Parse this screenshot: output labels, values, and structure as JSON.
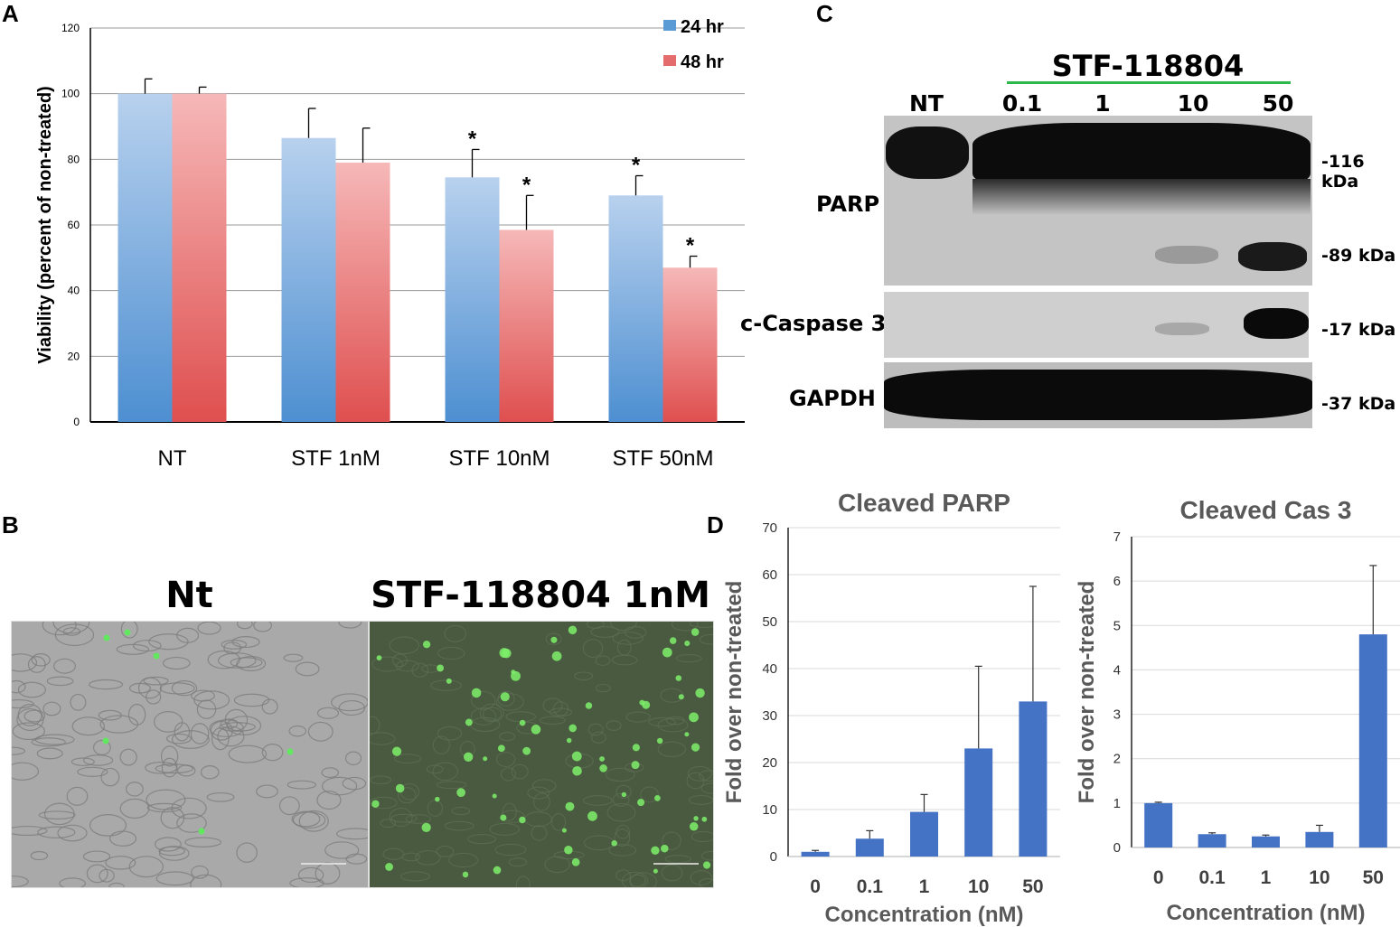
{
  "panels": {
    "a": "A",
    "b": "B",
    "c": "C",
    "d": "D"
  },
  "chart_data": [
    {
      "id": "A",
      "type": "bar",
      "title": "",
      "categories": [
        "NT",
        "STF 1nM",
        "STF 10nM",
        "STF 50nM"
      ],
      "series": [
        {
          "name": "24 hr",
          "values": [
            100,
            86.5,
            74.5,
            69
          ],
          "errors": [
            4.5,
            9,
            8.5,
            6
          ],
          "color": "#5b9bd5"
        },
        {
          "name": "48 hr",
          "values": [
            100,
            79,
            58.5,
            47
          ],
          "errors": [
            2,
            10.5,
            10.5,
            3.5
          ],
          "color": "#e46c6c"
        }
      ],
      "significance": {
        "24 hr": [
          "",
          "",
          "*",
          "*"
        ],
        "48 hr": [
          "",
          "",
          "*",
          "*"
        ]
      },
      "xlabel": "",
      "ylabel": "Viability (percent of non-treated)",
      "ylim": [
        0,
        120
      ],
      "yticks": [
        0,
        20,
        40,
        60,
        80,
        100,
        120
      ],
      "grid": true,
      "legend": "top-right"
    },
    {
      "id": "D1",
      "type": "bar",
      "title": "Cleaved PARP",
      "categories": [
        "0",
        "0.1",
        "1",
        "10",
        "50"
      ],
      "values": [
        1,
        3.8,
        9.5,
        23,
        33
      ],
      "errors": [
        0.3,
        1.7,
        3.7,
        17.5,
        24.5
      ],
      "xlabel": "Concentration (nM)",
      "ylabel": "Fold over non-treated",
      "ylim": [
        0,
        70
      ],
      "yticks": [
        0,
        10,
        20,
        30,
        40,
        50,
        60,
        70
      ],
      "grid": true,
      "color": "#4472c4"
    },
    {
      "id": "D2",
      "type": "bar",
      "title": "Cleaved Cas 3",
      "categories": [
        "0",
        "0.1",
        "1",
        "10",
        "50"
      ],
      "values": [
        1,
        0.3,
        0.25,
        0.35,
        4.8
      ],
      "errors": [
        0.02,
        0.03,
        0.03,
        0.15,
        1.55
      ],
      "xlabel": "Concentration (nM)",
      "ylabel": "Fold over non-treated",
      "ylim": [
        0,
        7
      ],
      "yticks": [
        0,
        1,
        2,
        3,
        4,
        5,
        6,
        7
      ],
      "grid": true,
      "color": "#4472c4"
    }
  ],
  "micrographs": {
    "left_title": "Nt",
    "right_title": "STF-118804 1nM"
  },
  "western_blot": {
    "compound": "STF-118804",
    "lanes": [
      "NT",
      "0.1",
      "1",
      "10",
      "50"
    ],
    "rows": [
      {
        "label": "PARP",
        "markers": [
          "-116 kDa",
          "-89 kDa"
        ]
      },
      {
        "label": "c-Caspase 3",
        "markers": [
          "-17 kDa"
        ]
      },
      {
        "label": "GAPDH",
        "markers": [
          "-37 kDa"
        ]
      }
    ],
    "bracket_color": "#2eb84b"
  }
}
